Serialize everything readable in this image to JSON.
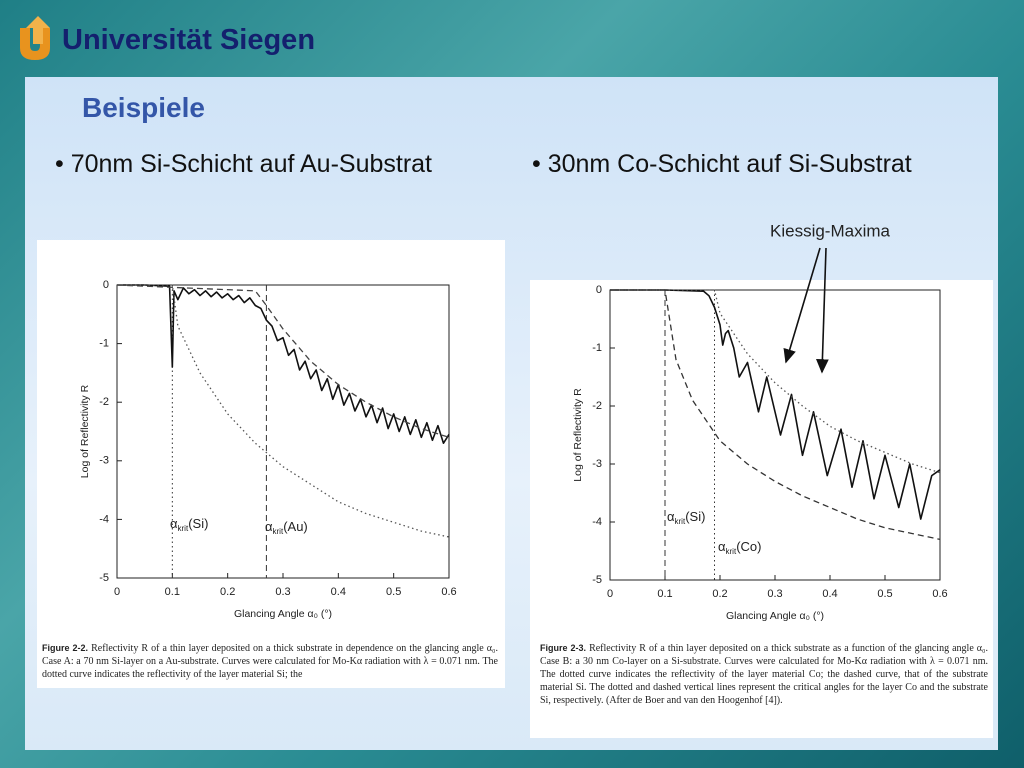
{
  "header": {
    "title": "Universität Siegen"
  },
  "slide": {
    "title": "Beispiele",
    "bullets": [
      "70nm Si-Schicht auf Au-Substrat",
      "30nm Co-Schicht auf Si-Substrat"
    ]
  },
  "chart_data": [
    {
      "type": "line",
      "xlabel": "Glancing Angle α₀ (°)",
      "ylabel": "Log of Reflectivity R",
      "xlim": [
        0,
        0.6
      ],
      "ylim": [
        -5,
        0
      ],
      "xticks": [
        0,
        0.1,
        0.2,
        0.3,
        0.4,
        0.5,
        0.6
      ],
      "yticks": [
        0,
        -1,
        -2,
        -3,
        -4,
        -5
      ],
      "grid": false,
      "series": [
        {
          "color": "#111111",
          "dash": "solid",
          "x": [
            0,
            0.05,
            0.095,
            0.1,
            0.103,
            0.11,
            0.12,
            0.13,
            0.14,
            0.15,
            0.16,
            0.17,
            0.18,
            0.19,
            0.2,
            0.21,
            0.22,
            0.23,
            0.24,
            0.25,
            0.26,
            0.27,
            0.28,
            0.29,
            0.3,
            0.31,
            0.32,
            0.33,
            0.34,
            0.35,
            0.36,
            0.37,
            0.38,
            0.39,
            0.4,
            0.41,
            0.42,
            0.43,
            0.44,
            0.45,
            0.46,
            0.47,
            0.48,
            0.49,
            0.5,
            0.51,
            0.52,
            0.53,
            0.54,
            0.55,
            0.56,
            0.57,
            0.58,
            0.59,
            0.6
          ],
          "values": [
            0,
            0,
            -0.02,
            -1.4,
            -0.1,
            -0.25,
            -0.05,
            -0.15,
            -0.08,
            -0.18,
            -0.1,
            -0.2,
            -0.12,
            -0.22,
            -0.15,
            -0.25,
            -0.18,
            -0.3,
            -0.22,
            -0.35,
            -0.4,
            -0.6,
            -0.7,
            -0.95,
            -0.9,
            -1.2,
            -1.1,
            -1.45,
            -1.3,
            -1.6,
            -1.45,
            -1.8,
            -1.6,
            -1.95,
            -1.7,
            -2.05,
            -1.85,
            -2.15,
            -1.95,
            -2.25,
            -2.05,
            -2.35,
            -2.1,
            -2.45,
            -2.2,
            -2.5,
            -2.25,
            -2.55,
            -2.3,
            -2.6,
            -2.35,
            -2.65,
            -2.4,
            -2.7,
            -2.55
          ]
        },
        {
          "color": "#444444",
          "dash": "dashed",
          "x": [
            0,
            0.25,
            0.27,
            0.3,
            0.35,
            0.4,
            0.45,
            0.5,
            0.55,
            0.6
          ],
          "values": [
            0,
            -0.1,
            -0.35,
            -0.75,
            -1.3,
            -1.7,
            -2.0,
            -2.25,
            -2.45,
            -2.6
          ]
        },
        {
          "color": "#555555",
          "dash": "dotted",
          "x": [
            0,
            0.1,
            0.11,
            0.15,
            0.2,
            0.25,
            0.3,
            0.35,
            0.4,
            0.45,
            0.5,
            0.55,
            0.6
          ],
          "values": [
            0,
            0,
            -0.7,
            -1.5,
            -2.2,
            -2.7,
            -3.1,
            -3.4,
            -3.7,
            -3.9,
            -4.05,
            -4.2,
            -4.3
          ]
        }
      ],
      "annotations": [
        {
          "x": 0.1,
          "dash": "dotted",
          "base": "α",
          "sub": "krit",
          "text": "(Si)"
        },
        {
          "x": 0.27,
          "dash": "dashed",
          "base": "α",
          "sub": "krit",
          "text": "(Au)"
        }
      ],
      "caption": {
        "label": "Figure 2-2.",
        "text": "Reflectivity R of a thin layer deposited on a thick substrate in dependence on the glancing angle α₀. Case A: a 70 nm Si-layer on a Au-substrate. Curves were calculated for Mo-Kα radiation with λ = 0.071 nm. The dotted curve indicates the reflectivity of the layer material Si; the"
      }
    },
    {
      "type": "line",
      "xlabel": "Glancing Angle α₀ (°)",
      "ylabel": "Log of Reflectivity R",
      "xlim": [
        0,
        0.6
      ],
      "ylim": [
        -5,
        0
      ],
      "xticks": [
        0,
        0.1,
        0.2,
        0.3,
        0.4,
        0.5,
        0.6
      ],
      "yticks": [
        0,
        -1,
        -2,
        -3,
        -4,
        -5
      ],
      "grid": false,
      "callout": "Kiessig-Maxima",
      "series": [
        {
          "color": "#111111",
          "dash": "solid",
          "x": [
            0,
            0.1,
            0.17,
            0.18,
            0.19,
            0.2,
            0.205,
            0.21,
            0.215,
            0.225,
            0.235,
            0.25,
            0.27,
            0.285,
            0.31,
            0.33,
            0.35,
            0.37,
            0.395,
            0.42,
            0.44,
            0.46,
            0.48,
            0.5,
            0.525,
            0.545,
            0.565,
            0.585,
            0.6
          ],
          "values": [
            0,
            0,
            -0.02,
            -0.1,
            -0.3,
            -0.6,
            -0.95,
            -0.75,
            -0.7,
            -1.0,
            -1.5,
            -1.25,
            -2.1,
            -1.5,
            -2.5,
            -1.8,
            -2.85,
            -2.1,
            -3.2,
            -2.4,
            -3.4,
            -2.6,
            -3.6,
            -2.85,
            -3.75,
            -3.0,
            -3.95,
            -3.2,
            -3.1
          ]
        },
        {
          "color": "#555555",
          "dash": "dotted",
          "x": [
            0,
            0.19,
            0.2,
            0.25,
            0.3,
            0.35,
            0.4,
            0.45,
            0.5,
            0.55,
            0.6
          ],
          "values": [
            0,
            0,
            -0.4,
            -1.1,
            -1.6,
            -2.0,
            -2.35,
            -2.6,
            -2.8,
            -3.0,
            -3.15
          ]
        },
        {
          "color": "#333333",
          "dash": "dashed",
          "x": [
            0,
            0.1,
            0.12,
            0.15,
            0.2,
            0.25,
            0.3,
            0.35,
            0.4,
            0.45,
            0.5,
            0.55,
            0.6
          ],
          "values": [
            0,
            0,
            -1.2,
            -1.9,
            -2.6,
            -3.0,
            -3.3,
            -3.55,
            -3.75,
            -3.95,
            -4.1,
            -4.2,
            -4.3
          ]
        }
      ],
      "annotations": [
        {
          "x": 0.1,
          "dash": "dashed",
          "base": "α",
          "sub": "krit",
          "text": "(Si)"
        },
        {
          "x": 0.19,
          "dash": "dotted",
          "base": "α",
          "sub": "krit",
          "text": "(Co)"
        }
      ],
      "caption": {
        "label": "Figure 2-3.",
        "text": "Reflectivity R of a thin layer deposited on a thick substrate as a function of the glancing angle α₀. Case B: a 30 nm Co-layer on a Si-substrate. Curves were calculated for Mo-Kα radiation with λ = 0.071 nm. The dotted curve indicates the reflectivity of the layer material Co; the dashed curve, that of the substrate material Si. The dotted and dashed vertical lines represent the critical angles for the layer Co and the substrate Si, respectively. (After de Boer and van den Hoogenhof [4])."
      }
    }
  ]
}
